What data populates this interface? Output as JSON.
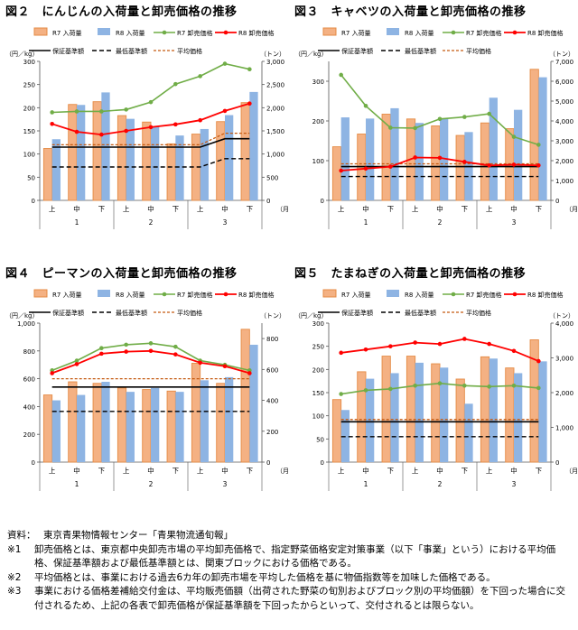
{
  "colors": {
    "r7_bar": "#f4b183",
    "r7_bar_border": "#e58b45",
    "r8_bar": "#8eb4e3",
    "r7_price": "#70ad47",
    "r8_price": "#ff0000",
    "guarantee": "#000000",
    "minimum": "#000000",
    "average": "#c55a11"
  },
  "chart_data": [
    {
      "type": "bar",
      "title": "図２　にんじんの入荷量と卸売価格の推移",
      "ylabel_left": "（円／kg）",
      "ylabel_right": "（トン）",
      "xlabel": "（月）",
      "ylim_left": [
        0,
        300
      ],
      "yticks_left": [
        "0",
        "50",
        "100",
        "150",
        "200",
        "250",
        "300"
      ],
      "ylim_right": [
        0,
        3000
      ],
      "yticks_right": [
        "0",
        "500",
        "1,000",
        "1,500",
        "2,000",
        "2,500",
        "3,000"
      ],
      "categories": [
        "上",
        "中",
        "下",
        "上",
        "中",
        "下",
        "上",
        "中",
        "下"
      ],
      "months": [
        "1",
        "2",
        "3"
      ],
      "legend": [
        "R7 入荷量",
        "R8 入荷量",
        "R7 卸売価格",
        "R8 卸売価格",
        "保証基準額",
        "最低基準額",
        "平均価格"
      ],
      "series": [
        {
          "name": "R7 入荷量",
          "axis": "right",
          "values": [
            1120,
            2070,
            2130,
            1830,
            1690,
            1220,
            1430,
            1700,
            2110
          ]
        },
        {
          "name": "R8 入荷量",
          "axis": "right",
          "values": [
            1320,
            2060,
            2330,
            1760,
            1590,
            1400,
            1540,
            1840,
            2340
          ]
        },
        {
          "name": "R7 卸売価格",
          "axis": "left",
          "values": [
            190,
            192,
            192,
            196,
            212,
            251,
            268,
            295,
            283
          ]
        },
        {
          "name": "R8 卸売価格",
          "axis": "left",
          "values": [
            165,
            148,
            142,
            150,
            158,
            164,
            173,
            193,
            209
          ]
        },
        {
          "name": "保証基準額",
          "axis": "left",
          "values": [
            115,
            115,
            115,
            115,
            115,
            115,
            115,
            133,
            133
          ]
        },
        {
          "name": "最低基準額",
          "axis": "left",
          "values": [
            72,
            72,
            72,
            72,
            72,
            72,
            72,
            90,
            90
          ]
        },
        {
          "name": "平均価格",
          "axis": "left",
          "values": [
            120,
            120,
            120,
            120,
            120,
            120,
            120,
            145,
            145
          ]
        }
      ]
    },
    {
      "type": "bar",
      "title": "図３　キャベツの入荷量と卸売価格の推移",
      "ylabel_left": "（円／kg）",
      "ylabel_right": "（トン）",
      "xlabel": "（月）",
      "ylim_left": [
        0,
        350
      ],
      "yticks_left": [
        "0",
        "100",
        "200",
        "300"
      ],
      "ylim_right": [
        0,
        7000
      ],
      "yticks_right": [
        "0",
        "1,000",
        "2,000",
        "3,000",
        "4,000",
        "5,000",
        "6,000",
        "7,000"
      ],
      "categories": [
        "上",
        "中",
        "下",
        "上",
        "中",
        "下",
        "上",
        "中",
        "下"
      ],
      "months": [
        "1",
        "2",
        "3"
      ],
      "legend": [
        "R7 入荷量",
        "R8 入荷量",
        "R7 卸売価格",
        "R8 卸売価格",
        "保証基準額",
        "最低基準額",
        "平均価格"
      ],
      "series": [
        {
          "name": "R7 入荷量",
          "axis": "right",
          "values": [
            2700,
            3340,
            4340,
            4100,
            3750,
            3270,
            3900,
            3610,
            6600
          ]
        },
        {
          "name": "R8 入荷量",
          "axis": "right",
          "values": [
            4180,
            4120,
            4640,
            3900,
            4130,
            3440,
            5170,
            4560,
            6200
          ]
        },
        {
          "name": "R7 卸売価格",
          "axis": "left",
          "values": [
            316,
            238,
            183,
            182,
            205,
            210,
            218,
            160,
            140
          ]
        },
        {
          "name": "R8 卸売価格",
          "axis": "left",
          "values": [
            75,
            80,
            85,
            108,
            107,
            97,
            88,
            90,
            88
          ]
        },
        {
          "name": "保証基準額",
          "axis": "left",
          "values": [
            85,
            85,
            85,
            85,
            85,
            85,
            85,
            85,
            85
          ]
        },
        {
          "name": "最低基準額",
          "axis": "left",
          "values": [
            60,
            60,
            60,
            60,
            60,
            60,
            60,
            60,
            60
          ]
        },
        {
          "name": "平均価格",
          "axis": "left",
          "values": [
            92,
            92,
            92,
            92,
            92,
            92,
            92,
            92,
            92
          ]
        }
      ]
    },
    {
      "type": "bar",
      "title": "図４　ピーマンの入荷量と卸売価格の推移",
      "ylabel_left": "（円／kg）",
      "ylabel_right": "（トン）",
      "xlabel": "（月）",
      "ylim_left": [
        0,
        1000
      ],
      "yticks_left": [
        "0",
        "200",
        "400",
        "600",
        "800",
        "1,000"
      ],
      "ylim_right": [
        0,
        900
      ],
      "yticks_right": [
        "0",
        "200",
        "400",
        "600",
        "800"
      ],
      "categories": [
        "上",
        "中",
        "下",
        "上",
        "中",
        "下",
        "上",
        "中",
        "下"
      ],
      "months": [
        "1",
        "2",
        "3"
      ],
      "legend": [
        "R7 入荷量",
        "R8 入荷量",
        "R7 卸売価格",
        "R8 卸売価格",
        "保証基準額",
        "最低基準額",
        "平均価格"
      ],
      "series": [
        {
          "name": "R7 入荷量",
          "axis": "right",
          "values": [
            435,
            520,
            510,
            480,
            470,
            460,
            640,
            510,
            860
          ]
        },
        {
          "name": "R8 入荷量",
          "axis": "right",
          "values": [
            400,
            435,
            520,
            455,
            480,
            455,
            530,
            550,
            760
          ]
        },
        {
          "name": "R7 卸売価格",
          "axis": "left",
          "values": [
            660,
            730,
            820,
            845,
            855,
            830,
            730,
            700,
            660
          ]
        },
        {
          "name": "R8 卸売価格",
          "axis": "left",
          "values": [
            640,
            705,
            780,
            795,
            800,
            775,
            715,
            690,
            640
          ]
        },
        {
          "name": "保証基準額",
          "axis": "left",
          "values": [
            540,
            540,
            540,
            540,
            540,
            540,
            540,
            540,
            540
          ]
        },
        {
          "name": "最低基準額",
          "axis": "left",
          "values": [
            365,
            365,
            365,
            365,
            365,
            365,
            365,
            365,
            365
          ]
        },
        {
          "name": "平均価格",
          "axis": "left",
          "values": [
            600,
            600,
            600,
            600,
            600,
            600,
            600,
            600,
            600
          ]
        }
      ]
    },
    {
      "type": "bar",
      "title": "図５　たまねぎの入荷量と卸売価格の推移",
      "ylabel_left": "（円／kg）",
      "ylabel_right": "（トン）",
      "xlabel": "（月）",
      "ylim_left": [
        0,
        300
      ],
      "yticks_left": [
        "0",
        "50",
        "100",
        "150",
        "200",
        "250",
        "300"
      ],
      "ylim_right": [
        0,
        4000
      ],
      "yticks_right": [
        "0",
        "1,000",
        "2,000",
        "3,000",
        "4,000"
      ],
      "categories": [
        "上",
        "中",
        "下",
        "上",
        "中",
        "下",
        "上",
        "中",
        "下"
      ],
      "months": [
        "1",
        "2",
        "3"
      ],
      "legend": [
        "R7 入荷量",
        "R8 入荷量",
        "R7 卸売価格",
        "R8 卸売価格",
        "保証基準額",
        "最低基準額",
        "平均価格"
      ],
      "series": [
        {
          "name": "R7 入荷量",
          "axis": "right",
          "values": [
            1800,
            2600,
            3050,
            3050,
            2830,
            2390,
            3030,
            2710,
            3520
          ]
        },
        {
          "name": "R8 入荷量",
          "axis": "right",
          "values": [
            1500,
            2400,
            2560,
            2860,
            2720,
            1680,
            2980,
            2560,
            2900
          ]
        },
        {
          "name": "R7 卸売価格",
          "axis": "left",
          "values": [
            147,
            155,
            158,
            165,
            170,
            165,
            163,
            165,
            160
          ]
        },
        {
          "name": "R8 卸売価格",
          "axis": "left",
          "values": [
            236,
            243,
            250,
            258,
            255,
            266,
            255,
            240,
            218
          ]
        },
        {
          "name": "保証基準額",
          "axis": "left",
          "values": [
            87,
            87,
            87,
            87,
            87,
            87,
            87,
            87,
            87
          ]
        },
        {
          "name": "最低基準額",
          "axis": "left",
          "values": [
            55,
            55,
            55,
            55,
            55,
            55,
            55,
            55,
            55
          ]
        },
        {
          "name": "平均価格",
          "axis": "left",
          "values": [
            92,
            92,
            92,
            92,
            92,
            92,
            92,
            92,
            92
          ]
        }
      ]
    }
  ],
  "notes": [
    {
      "mark": "資料：",
      "text": "東京青果物情報センター「青果物流通旬報」"
    },
    {
      "mark": "※1",
      "text": "卸売価格とは、東京都中央卸売市場の平均卸売価格で、指定野菜価格安定対策事業（以下「事業」という）における平均価格、保証基準額および最低基準額とは、関東ブロックにおける価格である。"
    },
    {
      "mark": "※2",
      "text": "平均価格とは、事業における過去6カ年の卸売市場を平均した価格を基に物価指数等を加味した価格である。"
    },
    {
      "mark": "※3",
      "text": "事業における価格差補給交付金は、平均販売価額（出荷された野菜の旬別およびブロック別の平均価額）を下回った場合に交付されるため、上記の各表で卸売価格が保証基準額を下回ったからといって、交付されるとは限らない。"
    }
  ]
}
